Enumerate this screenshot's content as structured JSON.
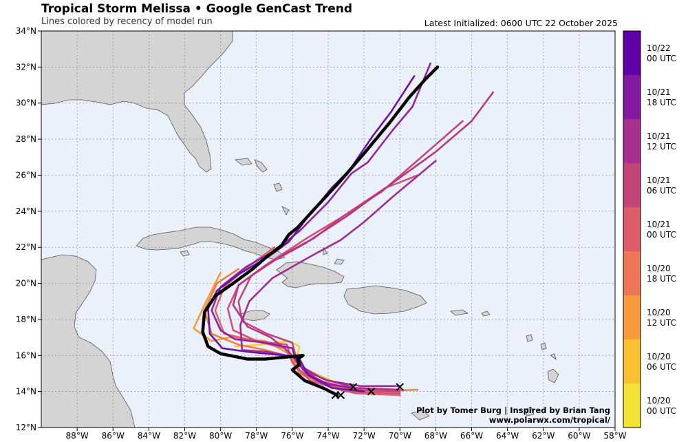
{
  "header": {
    "title": "Tropical Storm Melissa • Google GenCast Trend",
    "subtitle": "Lines colored by recency of model run",
    "latest": "Latest Initialized: 0600 UTC 22 October 2025"
  },
  "credits": {
    "line1": "Plot by Tomer Burg | Inspired by Brian Tang",
    "line2": "www.polarwx.com/tropical/"
  },
  "axes": {
    "lat_labels": [
      "34°N",
      "32°N",
      "30°N",
      "28°N",
      "26°N",
      "24°N",
      "22°N",
      "20°N",
      "18°N",
      "16°N",
      "14°N",
      "12°N"
    ],
    "lon_labels": [
      "88°W",
      "86°W",
      "84°W",
      "82°W",
      "80°W",
      "78°W",
      "76°W",
      "74°W",
      "72°W",
      "70°W",
      "68°W",
      "66°W",
      "64°W",
      "62°W",
      "60°W",
      "58°W"
    ],
    "lat_range": [
      12,
      34
    ],
    "lon_range": [
      -90,
      -58
    ]
  },
  "colorbar": {
    "colors": [
      "#f2e233",
      "#f9c12f",
      "#f89a3b",
      "#ee7556",
      "#dc5a6a",
      "#c4447a",
      "#a62f8f",
      "#8519a3",
      "#6100a8"
    ],
    "labels": [
      [
        "10/22",
        "00 UTC"
      ],
      [
        "10/21",
        "18 UTC"
      ],
      [
        "10/21",
        "12 UTC"
      ],
      [
        "10/21",
        "06 UTC"
      ],
      [
        "10/21",
        "00 UTC"
      ],
      [
        "10/20",
        "18 UTC"
      ],
      [
        "10/20",
        "12 UTC"
      ],
      [
        "10/20",
        "06 UTC"
      ],
      [
        "10/20",
        "00 UTC"
      ]
    ]
  },
  "tracks": [
    {
      "color": "#f5d230",
      "points": [
        [
          -72.3,
          14.1
        ],
        [
          -73.8,
          14.6
        ],
        [
          -75.2,
          15.2
        ],
        [
          -75.8,
          15.7
        ],
        [
          -75.6,
          16.5
        ],
        [
          -76.2,
          16.8
        ],
        [
          -77.8,
          16.6
        ],
        [
          -79.2,
          16.5
        ]
      ]
    },
    {
      "color": "#f89a3b",
      "points": [
        [
          -70.0,
          14.1
        ],
        [
          -72.0,
          14.0
        ],
        [
          -74.0,
          14.4
        ],
        [
          -75.5,
          15.0
        ],
        [
          -76.0,
          16.0
        ],
        [
          -77.5,
          16.8
        ],
        [
          -79.5,
          17.0
        ],
        [
          -80.5,
          16.8
        ],
        [
          -81.5,
          17.5
        ],
        [
          -80.8,
          19.0
        ],
        [
          -80.0,
          20.6
        ]
      ]
    },
    {
      "color": "#f0803f",
      "points": [
        [
          -69.0,
          14.1
        ],
        [
          -71.5,
          14.0
        ],
        [
          -74.0,
          14.3
        ],
        [
          -75.6,
          15.0
        ],
        [
          -76.0,
          15.9
        ],
        [
          -77.5,
          16.3
        ],
        [
          -79.0,
          16.6
        ],
        [
          -80.5,
          17.2
        ],
        [
          -80.9,
          18.5
        ],
        [
          -80.2,
          20.0
        ],
        [
          -79.0,
          20.8
        ]
      ]
    },
    {
      "color": "#e0616a",
      "points": [
        [
          -70.0,
          13.8
        ],
        [
          -72.5,
          13.9
        ],
        [
          -74.5,
          14.5
        ],
        [
          -75.8,
          15.3
        ],
        [
          -76.4,
          16.4
        ],
        [
          -78.5,
          16.9
        ],
        [
          -79.8,
          17.2
        ],
        [
          -80.3,
          18.5
        ],
        [
          -79.8,
          19.8
        ],
        [
          -78.5,
          20.9
        ],
        [
          -77.0,
          22.0
        ]
      ]
    },
    {
      "color": "#d2507a",
      "points": [
        [
          -70.0,
          13.9
        ],
        [
          -73.0,
          14.0
        ],
        [
          -75.0,
          14.6
        ],
        [
          -76.0,
          15.6
        ],
        [
          -76.3,
          16.6
        ],
        [
          -78.0,
          16.8
        ],
        [
          -79.3,
          17.4
        ],
        [
          -79.6,
          18.6
        ],
        [
          -79.0,
          19.9
        ],
        [
          -77.2,
          21.2
        ],
        [
          -75.2,
          22.5
        ],
        [
          -73.2,
          23.7
        ],
        [
          -70.8,
          25.3
        ],
        [
          -69.0,
          26.0
        ]
      ]
    },
    {
      "color": "#c4447a",
      "points": [
        [
          -70.0,
          14.0
        ],
        [
          -72.5,
          14.1
        ],
        [
          -74.5,
          14.6
        ],
        [
          -75.7,
          15.5
        ],
        [
          -76.0,
          16.7
        ],
        [
          -77.4,
          17.2
        ],
        [
          -78.8,
          17.9
        ],
        [
          -79.0,
          19.0
        ],
        [
          -78.3,
          20.4
        ],
        [
          -76.5,
          21.6
        ],
        [
          -74.8,
          22.5
        ],
        [
          -73.2,
          23.7
        ],
        [
          -71.0,
          25.1
        ],
        [
          -66.5,
          29.0
        ]
      ]
    },
    {
      "color": "#b53585",
      "points": [
        [
          -70.0,
          14.1
        ],
        [
          -72.5,
          14.2
        ],
        [
          -74.3,
          14.7
        ],
        [
          -75.5,
          15.4
        ],
        [
          -76.2,
          16.2
        ],
        [
          -77.2,
          17.0
        ],
        [
          -78.5,
          17.6
        ],
        [
          -79.3,
          18.8
        ],
        [
          -79.0,
          19.9
        ],
        [
          -77.5,
          21.0
        ],
        [
          -75.3,
          22.2
        ],
        [
          -73.0,
          23.7
        ],
        [
          -70.5,
          25.5
        ],
        [
          -68.0,
          27.3
        ],
        [
          -66.0,
          29.0
        ],
        [
          -64.8,
          30.6
        ]
      ]
    },
    {
      "color": "#a02b95",
      "points": [
        [
          -70.0,
          14.3
        ],
        [
          -72.2,
          14.3
        ],
        [
          -74.0,
          14.6
        ],
        [
          -75.4,
          15.2
        ],
        [
          -75.8,
          15.9
        ],
        [
          -77.4,
          16.2
        ],
        [
          -78.8,
          16.3
        ],
        [
          -78.9,
          17.7
        ],
        [
          -78.4,
          19.0
        ],
        [
          -77.1,
          20.3
        ],
        [
          -74.8,
          21.6
        ],
        [
          -73.3,
          22.4
        ],
        [
          -72.0,
          23.4
        ],
        [
          -70.4,
          24.8
        ],
        [
          -68.0,
          26.8
        ]
      ]
    },
    {
      "color": "#9023a0",
      "points": [
        [
          -72.6,
          14.2
        ],
        [
          -74.0,
          14.4
        ],
        [
          -75.2,
          15.0
        ],
        [
          -75.8,
          15.7
        ],
        [
          -76.0,
          16.4
        ],
        [
          -77.5,
          16.7
        ],
        [
          -79.2,
          16.9
        ],
        [
          -80.0,
          17.4
        ],
        [
          -80.5,
          18.5
        ],
        [
          -80.0,
          19.8
        ],
        [
          -78.6,
          20.9
        ],
        [
          -77.0,
          21.8
        ],
        [
          -75.6,
          22.9
        ],
        [
          -74.0,
          24.5
        ],
        [
          -72.7,
          26.1
        ],
        [
          -71.8,
          26.7
        ],
        [
          -70.4,
          28.5
        ],
        [
          -69.3,
          29.8
        ],
        [
          -68.3,
          32.2
        ]
      ]
    },
    {
      "color": "#7010a6",
      "points": [
        [
          -72.0,
          14.0
        ],
        [
          -73.8,
          14.2
        ],
        [
          -75.1,
          14.9
        ],
        [
          -75.6,
          15.8
        ],
        [
          -76.4,
          16.0
        ],
        [
          -78.5,
          16.2
        ],
        [
          -79.9,
          16.4
        ],
        [
          -80.6,
          17.2
        ],
        [
          -80.7,
          18.6
        ],
        [
          -80.2,
          19.6
        ],
        [
          -79.0,
          20.5
        ],
        [
          -77.3,
          21.5
        ],
        [
          -76.2,
          22.3
        ],
        [
          -75.2,
          23.6
        ],
        [
          -73.8,
          25.3
        ],
        [
          -72.8,
          26.3
        ],
        [
          -71.5,
          28.2
        ],
        [
          -70.5,
          29.5
        ],
        [
          -69.2,
          31.5
        ]
      ]
    },
    {
      "color": "#000000",
      "width": 4.5,
      "points": [
        [
          -73.5,
          13.8
        ],
        [
          -74.3,
          14.2
        ],
        [
          -75.3,
          14.6
        ],
        [
          -76.0,
          15.2
        ],
        [
          -75.6,
          15.5
        ],
        [
          -75.7,
          15.8
        ],
        [
          -75.4,
          16.0
        ],
        [
          -77.5,
          15.8
        ],
        [
          -78.5,
          15.8
        ],
        [
          -80.0,
          16.1
        ],
        [
          -80.7,
          16.5
        ],
        [
          -81.0,
          17.3
        ],
        [
          -80.9,
          18.4
        ],
        [
          -80.3,
          19.3
        ],
        [
          -79.3,
          20.0
        ],
        [
          -78.2,
          20.8
        ],
        [
          -77.4,
          21.5
        ],
        [
          -76.6,
          22.1
        ],
        [
          -76.2,
          22.7
        ],
        [
          -75.7,
          23.1
        ],
        [
          -74.7,
          24.2
        ],
        [
          -73.3,
          25.7
        ],
        [
          -72.0,
          27.2
        ],
        [
          -70.5,
          29.0
        ],
        [
          -69.5,
          30.3
        ],
        [
          -68.6,
          31.3
        ],
        [
          -67.9,
          32.0
        ]
      ]
    }
  ],
  "x_markers": [
    [
      -73.6,
      13.8
    ],
    [
      -73.3,
      13.8
    ],
    [
      -72.6,
      14.25
    ],
    [
      -71.6,
      14.0
    ],
    [
      -70.0,
      14.25
    ]
  ]
}
